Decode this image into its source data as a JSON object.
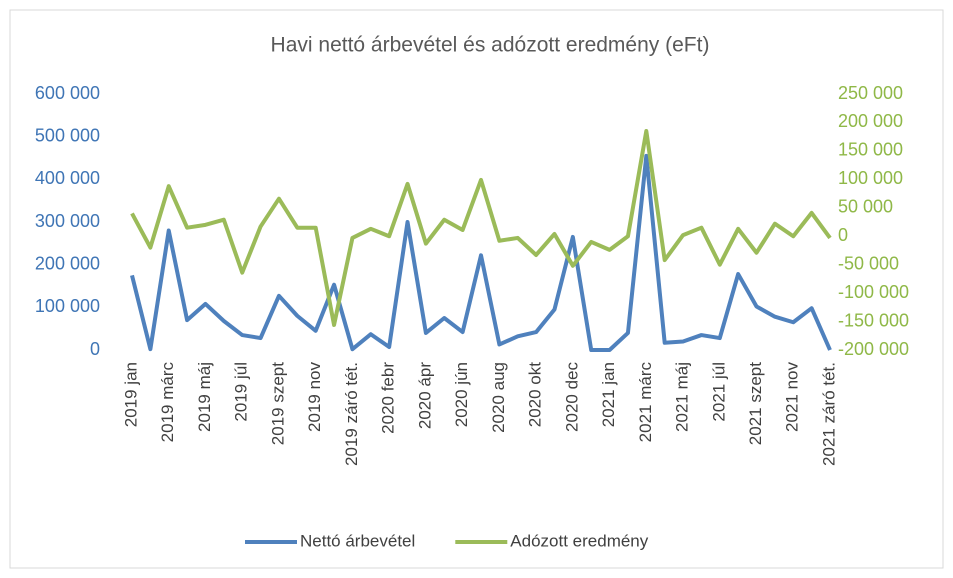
{
  "chart_data": {
    "type": "line",
    "title": "Havi nettó árbevétel és adózott eredmény (eFt)",
    "categories": [
      "2019 jan",
      null,
      "2019 márc",
      null,
      "2019 máj",
      null,
      "2019 júl",
      null,
      "2019 szept",
      null,
      "2019 nov",
      null,
      "2019 záró tét.",
      null,
      "2020 febr",
      null,
      "2020 ápr",
      null,
      "2020 jún",
      null,
      "2020 aug",
      null,
      "2020 okt",
      null,
      "2020 dec",
      null,
      "2021 jan",
      null,
      "2021 márc",
      null,
      "2021 máj",
      null,
      "2021 júl",
      null,
      "2021 szept",
      null,
      "2021 nov",
      null,
      "2021 záró tét."
    ],
    "series": [
      {
        "name": "Nettó árbevétel",
        "color": "#4f81bd",
        "values": [
          175000,
          2000,
          280000,
          70000,
          108000,
          68000,
          35000,
          28000,
          127000,
          80000,
          45000,
          153000,
          2000,
          37000,
          7000,
          300000,
          40000,
          75000,
          42000,
          222000,
          13000,
          32000,
          42000,
          95000,
          265000,
          0,
          0,
          40000,
          455000,
          17000,
          20000,
          35000,
          28000,
          178000,
          102000,
          78000,
          65000,
          98000,
          0
        ]
      },
      {
        "name": "Adózott eredmény",
        "color": "#9bbb59",
        "axis": "y2",
        "values": [
          40000,
          -20000,
          88000,
          15000,
          20000,
          29000,
          -64000,
          17000,
          66000,
          15000,
          15000,
          -156000,
          -3000,
          13000,
          0,
          92000,
          -13000,
          29000,
          11000,
          99000,
          -8000,
          -3000,
          -33000,
          4000,
          -52000,
          -10000,
          -24000,
          0,
          185000,
          -42000,
          2000,
          15000,
          -50000,
          13000,
          -29000,
          22000,
          0,
          41000,
          -3000
        ]
      }
    ],
    "ylim": [
      0,
      600000
    ],
    "yticks": [
      0,
      {
        "value": 100000,
        "label": "100 000"
      },
      {
        "value": 200000,
        "label": "200 000"
      },
      {
        "value": 300000,
        "label": "300 000"
      },
      {
        "value": 400000,
        "label": "400 000"
      },
      {
        "value": 500000,
        "label": "500 000"
      },
      {
        "value": 600000,
        "label": "600 000"
      }
    ],
    "y2lim": [
      -200000,
      250000
    ],
    "y2ticks": [
      {
        "value": -200000,
        "label": "-200 000"
      },
      {
        "value": -150000,
        "label": "-150 000"
      },
      {
        "value": -100000,
        "label": "-100 000"
      },
      {
        "value": -50000,
        "label": "-50 000"
      },
      0,
      {
        "value": 50000,
        "label": "50 000"
      },
      {
        "value": 100000,
        "label": "100 000"
      },
      {
        "value": 150000,
        "label": "150 000"
      },
      {
        "value": 200000,
        "label": "200 000"
      },
      {
        "value": 250000,
        "label": "250 000"
      }
    ],
    "legend": "bottom",
    "grid": false
  }
}
